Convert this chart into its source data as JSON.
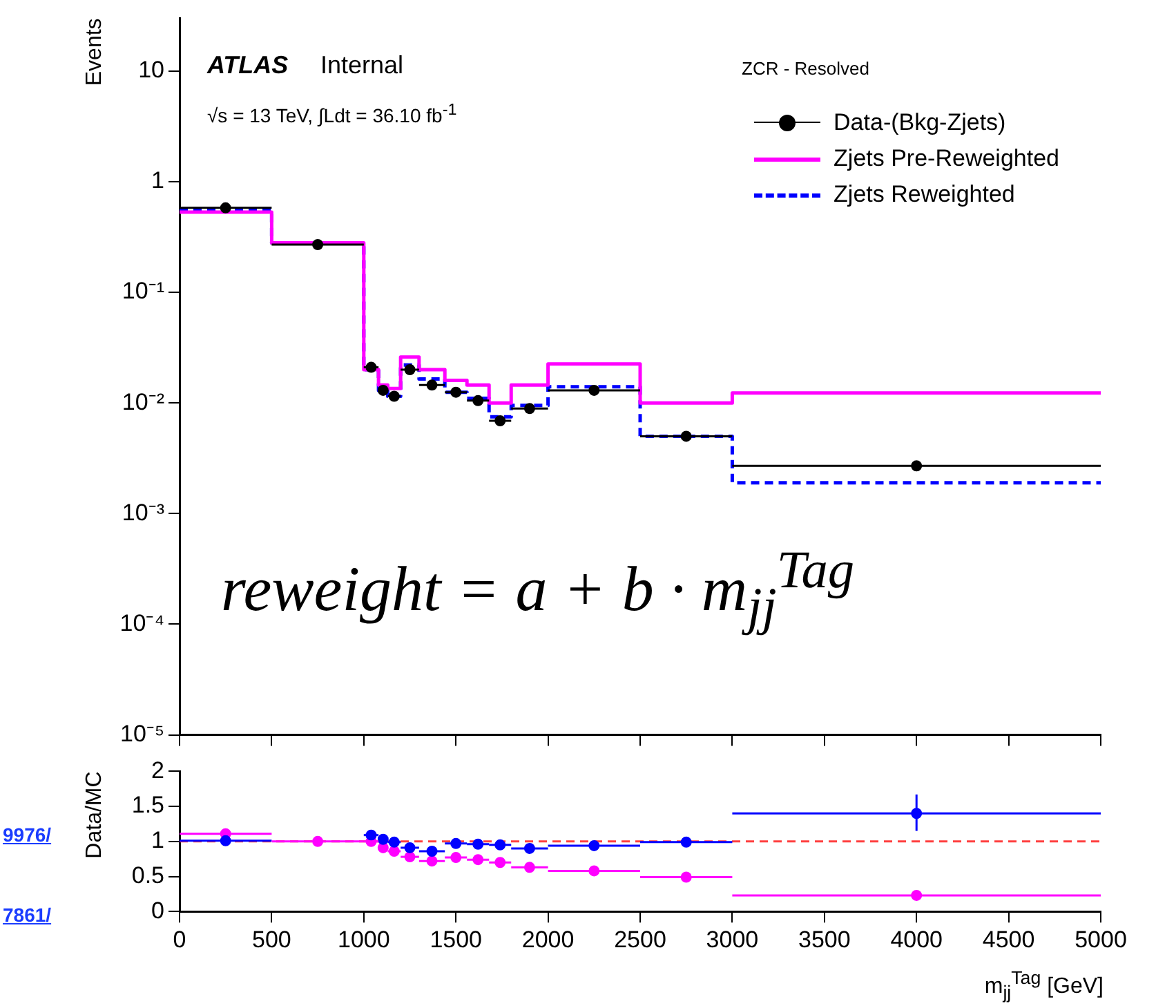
{
  "chart_data": [
    {
      "type": "histogram",
      "ylabel": "Events",
      "log": "y",
      "legend": "top right",
      "tick_labels": "y",
      "xlim": [
        0,
        5000
      ],
      "xticks": [
        0,
        500,
        1000,
        1500,
        2000,
        2500,
        3000,
        3500,
        4000,
        4500,
        5000
      ],
      "ylim": [
        1e-05,
        30
      ],
      "yticks": [
        {
          "value": 1e-05,
          "label": "10⁻⁵"
        },
        {
          "value": 0.0001,
          "label": "10⁻⁴"
        },
        {
          "value": 0.001,
          "label": "10⁻³"
        },
        {
          "value": 0.01,
          "label": "10⁻²"
        },
        {
          "value": 0.1,
          "label": "10⁻¹"
        },
        1,
        10
      ],
      "bins": [
        0,
        500,
        1000,
        1080,
        1130,
        1200,
        1300,
        1440,
        1560,
        1680,
        1800,
        2000,
        2500,
        3000,
        5000
      ],
      "annotations": [
        "ATLAS",
        "Internal",
        "√s = 13 TeV, ∫Ldt = 36.10 fb$^{-1}$",
        "ZCR - Resolved",
        "reweight = a + b · m$_{jj}$$^{Tag}$"
      ],
      "series": [
        {
          "name": "Data-(Bkg-Zjets)",
          "type": "scatter",
          "marker": "circle",
          "color": "#000000",
          "x": [
            250,
            750,
            1040,
            1105,
            1165,
            1250,
            1370,
            1500,
            1620,
            1740,
            1900,
            2250,
            2750,
            4000
          ],
          "values": [
            0.58,
            0.27,
            0.021,
            0.013,
            0.0115,
            0.02,
            0.0145,
            0.0125,
            0.0105,
            0.0069,
            0.0089,
            0.013,
            0.005,
            0.0027
          ],
          "xerrors": [
            250,
            250,
            40,
            25,
            35,
            50,
            70,
            60,
            60,
            60,
            100,
            250,
            250,
            1000
          ]
        },
        {
          "name": "Zjets Pre-Reweighted",
          "color": "#ff00ff",
          "values": [
            0.53,
            0.28,
            0.02,
            0.0145,
            0.0135,
            0.026,
            0.02,
            0.016,
            0.0145,
            0.01,
            0.0145,
            0.0225,
            0.01,
            0.0123
          ]
        },
        {
          "name": "Zjets Reweighted",
          "color": "#0000ff",
          "line_style": "dashed",
          "values": [
            0.56,
            0.28,
            0.02,
            0.013,
            0.0115,
            0.022,
            0.0165,
            0.0125,
            0.011,
            0.0075,
            0.0095,
            0.014,
            0.005,
            0.0019
          ]
        }
      ]
    },
    {
      "type": "scatter",
      "ylabel": "Data/MC",
      "xlabel": "m$_{jj}$$^{Tag}$ [GeV]",
      "marker": "circle",
      "xlim": [
        0,
        5000
      ],
      "xticks": [
        0,
        500,
        1000,
        1500,
        2000,
        2500,
        3000,
        3500,
        4000,
        4500,
        5000
      ],
      "ylim": [
        0,
        2
      ],
      "yticks": [
        0,
        0.5,
        1,
        1.5,
        2
      ],
      "ref_lines": [
        {
          "axis": "y",
          "value": 1,
          "color": "#ff4040",
          "line_style": "dashed"
        }
      ],
      "annotations": [
        "9976/",
        "7861/"
      ],
      "series": [
        {
          "color": "#0000ff",
          "x": [
            250,
            750,
            1040,
            1105,
            1165,
            1250,
            1370,
            1500,
            1620,
            1740,
            1900,
            2250,
            2750,
            4000
          ],
          "values": [
            1.01,
            null,
            1.09,
            1.03,
            0.99,
            0.91,
            0.86,
            0.97,
            0.96,
            0.95,
            0.9,
            0.94,
            0.99,
            1.4
          ],
          "xerrors": [
            250,
            null,
            40,
            25,
            35,
            50,
            70,
            60,
            60,
            60,
            100,
            250,
            250,
            1000
          ],
          "errors": [
            null,
            null,
            null,
            null,
            null,
            null,
            null,
            null,
            null,
            null,
            null,
            null,
            null,
            [
              1.15,
              1.67
            ]
          ]
        },
        {
          "color": "#ff00ff",
          "x": [
            250,
            750,
            1040,
            1105,
            1165,
            1250,
            1370,
            1500,
            1620,
            1740,
            1900,
            2250,
            2750,
            4000
          ],
          "values": [
            1.11,
            1.0,
            1.0,
            0.91,
            0.86,
            0.78,
            0.72,
            0.77,
            0.74,
            0.7,
            0.63,
            0.58,
            0.49,
            0.23
          ],
          "xerrors": [
            250,
            250,
            40,
            25,
            35,
            50,
            70,
            60,
            60,
            60,
            100,
            250,
            250,
            1000
          ]
        }
      ]
    }
  ]
}
